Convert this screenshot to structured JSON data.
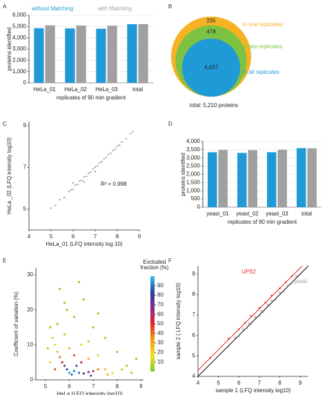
{
  "chart_data": [
    {
      "type": "bar",
      "panel_label": "A",
      "xlabel": "replicates of 90 min gradient",
      "ylabel": "proteins identified",
      "categories": [
        "HeLa_01",
        "HeLa_02",
        "HeLa_03",
        "total"
      ],
      "series": [
        {
          "name": "without Matching",
          "color": "#1f9ad6",
          "values": [
            4850,
            4830,
            4800,
            5200
          ]
        },
        {
          "name": "with Matching",
          "color": "#a0a0a0",
          "values": [
            5100,
            5080,
            5070,
            5210
          ]
        }
      ],
      "ylim": [
        0,
        6000
      ],
      "yticks": [
        0,
        {
          "value": 1000,
          "label": "1,000"
        },
        {
          "value": 2000,
          "label": "2,000"
        },
        {
          "value": 3000,
          "label": "3,000"
        },
        {
          "value": 4000,
          "label": "4,000"
        },
        {
          "value": 5000,
          "label": "5,000"
        },
        {
          "value": 6000,
          "label": "6,000"
        }
      ],
      "grid": true,
      "legend": "top"
    },
    {
      "type": "nested-circles",
      "panel_label": "B",
      "categories": [
        "in one replicates",
        "in two replicates",
        "in all replicates"
      ],
      "values": [
        295,
        478,
        4437
      ],
      "value_labels": [
        "295",
        "478",
        "4,437"
      ],
      "colors": [
        "#f5b324",
        "#7dc242",
        "#1f9ad6"
      ],
      "total_label": "total: 5,210 proteins"
    },
    {
      "type": "scatter",
      "panel_label": "C",
      "xlabel": "HeLa_01 (LFQ intensity log 10)",
      "ylabel": "HeLa _02 (LFQ intensity log10)",
      "xlim": [
        4,
        9
      ],
      "ylim": [
        4,
        9.2
      ],
      "xticks": [
        4,
        5,
        6,
        7,
        8,
        9
      ],
      "yticks": [
        5,
        7,
        9
      ],
      "annotation": "R² = 0.998",
      "series": [
        {
          "color": "#a0a0a0",
          "x": [
            5.0,
            5.2,
            5.4,
            5.6,
            5.8,
            5.9,
            6.0,
            6.1,
            6.2,
            6.3,
            6.4,
            6.5,
            6.6,
            6.7,
            6.8,
            6.9,
            7.0,
            7.1,
            7.2,
            7.3,
            7.4,
            7.5,
            7.6,
            7.7,
            7.8,
            7.9,
            8.0,
            8.1,
            8.2,
            8.4,
            8.6,
            8.7,
            6.0,
            6.5,
            7.0
          ],
          "y": [
            5.05,
            5.18,
            5.45,
            5.55,
            5.85,
            5.92,
            5.95,
            6.15,
            6.18,
            6.35,
            6.38,
            6.55,
            6.57,
            6.72,
            6.78,
            6.93,
            7.02,
            7.08,
            7.22,
            7.28,
            7.42,
            7.48,
            7.62,
            7.68,
            7.82,
            7.88,
            8.02,
            8.08,
            8.22,
            8.38,
            8.62,
            8.72,
            6.25,
            6.3,
            6.8
          ]
        }
      ]
    },
    {
      "type": "bar",
      "panel_label": "D",
      "xlabel": "replicates of 90 min gradient",
      "ylabel": "proteins identified",
      "categories": [
        "yeast_01",
        "yeast_02",
        "yeast_03",
        "total"
      ],
      "series": [
        {
          "color": "#1f9ad6",
          "values": [
            3350,
            3310,
            3350,
            3600
          ]
        },
        {
          "color": "#a0a0a0",
          "values": [
            3490,
            3480,
            3500,
            3590
          ]
        }
      ],
      "ylim": [
        0,
        4000
      ],
      "yticks": [
        0,
        500,
        {
          "value": 1000,
          "label": "1,000"
        },
        {
          "value": 1500,
          "label": "1,500"
        },
        {
          "value": 2000,
          "label": "2,000"
        },
        {
          "value": 2500,
          "label": "2,500"
        },
        {
          "value": 3000,
          "label": "3,000"
        },
        {
          "value": 3500,
          "label": "3,500"
        },
        {
          "value": 4000,
          "label": "4,000"
        }
      ],
      "grid": true
    },
    {
      "type": "scatter",
      "panel_label": "E",
      "xlabel": "HeLa (LFQ intensity log10)",
      "ylabel": "Coefficient of variation (%)",
      "xlim": [
        4.6,
        9.1
      ],
      "ylim": [
        0,
        32
      ],
      "xticks": [
        5,
        6,
        7,
        8,
        9
      ],
      "yticks": [
        0,
        10,
        20,
        30
      ],
      "colorbar": {
        "label": [
          "Excluded",
          "fraction (%)"
        ],
        "lim": [
          0,
          100
        ],
        "ticks": [
          10,
          20,
          30,
          40,
          50,
          60,
          70,
          80,
          90
        ],
        "colors": [
          "#7ccb2b",
          "#f5e11b",
          "#f39c1e",
          "#e3262a",
          "#8a2a8f",
          "#2a3ea0",
          "#2ec7e6"
        ]
      },
      "series": [
        {
          "x": [
            6.0,
            6.2,
            5.9,
            6.4,
            6.6,
            5.8,
            6.3,
            6.8,
            5.7,
            6.5,
            7.0,
            5.6,
            6.2,
            7.2,
            5.5,
            6.0,
            7.5,
            6.8,
            5.4,
            6.5,
            7.8,
            7.2,
            5.3,
            5.8,
            8.2,
            6.8,
            5.5,
            6.2,
            5.8,
            5.6,
            6.4,
            7.0,
            7.5,
            8.4,
            8.6,
            5.9,
            6.6,
            5.2,
            7.2,
            8.0,
            5.1,
            6.9,
            6.1,
            5.4,
            5.2,
            7.6,
            8.8
          ],
          "y": [
            2,
            2.5,
            3,
            2,
            1.8,
            4,
            4,
            2.2,
            5,
            5,
            2.5,
            6.5,
            7,
            3,
            8,
            9,
            3,
            6,
            10,
            10,
            2,
            7,
            12,
            13,
            3,
            11,
            16,
            18,
            22,
            26,
            28,
            15,
            12,
            4,
            2,
            20,
            23,
            15,
            19,
            8,
            9,
            1.2,
            1.5,
            3,
            5,
            1.5,
            6
          ],
          "c": [
            95,
            92,
            85,
            88,
            80,
            70,
            75,
            72,
            55,
            60,
            55,
            40,
            45,
            40,
            25,
            30,
            25,
            30,
            15,
            15,
            15,
            18,
            8,
            8,
            8,
            8,
            3,
            3,
            2,
            2,
            2,
            2,
            3,
            4,
            3,
            2,
            2,
            3,
            2,
            4,
            5,
            70,
            90,
            45,
            20,
            30,
            2
          ]
        }
      ]
    },
    {
      "type": "scatter",
      "panel_label": "F",
      "xlabel": "sample 1 (LFQ intensity log10)",
      "ylabel": "sample 2 ( LFQ intensity log10)",
      "xlim": [
        4,
        9.4
      ],
      "ylim": [
        4,
        9.4
      ],
      "xticks": [
        4,
        5,
        6,
        7,
        8,
        9
      ],
      "yticks": [
        4,
        5,
        6,
        7,
        8,
        9
      ],
      "lines": [
        {
          "color": "#e3262a",
          "x": [
            4,
            9.1
          ],
          "y": [
            4.3,
            9.4
          ]
        },
        {
          "color": "#000000",
          "x": [
            4,
            9.4
          ],
          "y": [
            4,
            9.4
          ]
        }
      ],
      "series": [
        {
          "name": "yeast",
          "color": "#a0a0a0",
          "x": [
            5.5,
            5.8,
            6.0,
            6.2,
            6.4,
            6.5,
            6.6,
            6.8,
            7.0,
            7.1,
            7.2,
            7.4,
            7.5,
            7.6,
            7.8,
            8.0,
            8.2,
            8.4,
            8.6,
            8.8
          ],
          "y": [
            5.45,
            5.9,
            5.95,
            6.3,
            6.35,
            6.6,
            6.55,
            6.9,
            6.95,
            7.2,
            7.15,
            7.5,
            7.45,
            7.7,
            7.75,
            8.1,
            8.15,
            8.45,
            8.55,
            8.9
          ]
        },
        {
          "name": "UPS2",
          "color": "#e3262a",
          "x": [
            4.6,
            5.5,
            6.0,
            6.3,
            6.6,
            7.0,
            7.3,
            7.6,
            8.0,
            8.3,
            8.6
          ],
          "y": [
            4.9,
            5.85,
            6.3,
            6.6,
            6.95,
            7.35,
            7.6,
            7.95,
            8.3,
            8.6,
            8.9
          ]
        }
      ]
    }
  ]
}
